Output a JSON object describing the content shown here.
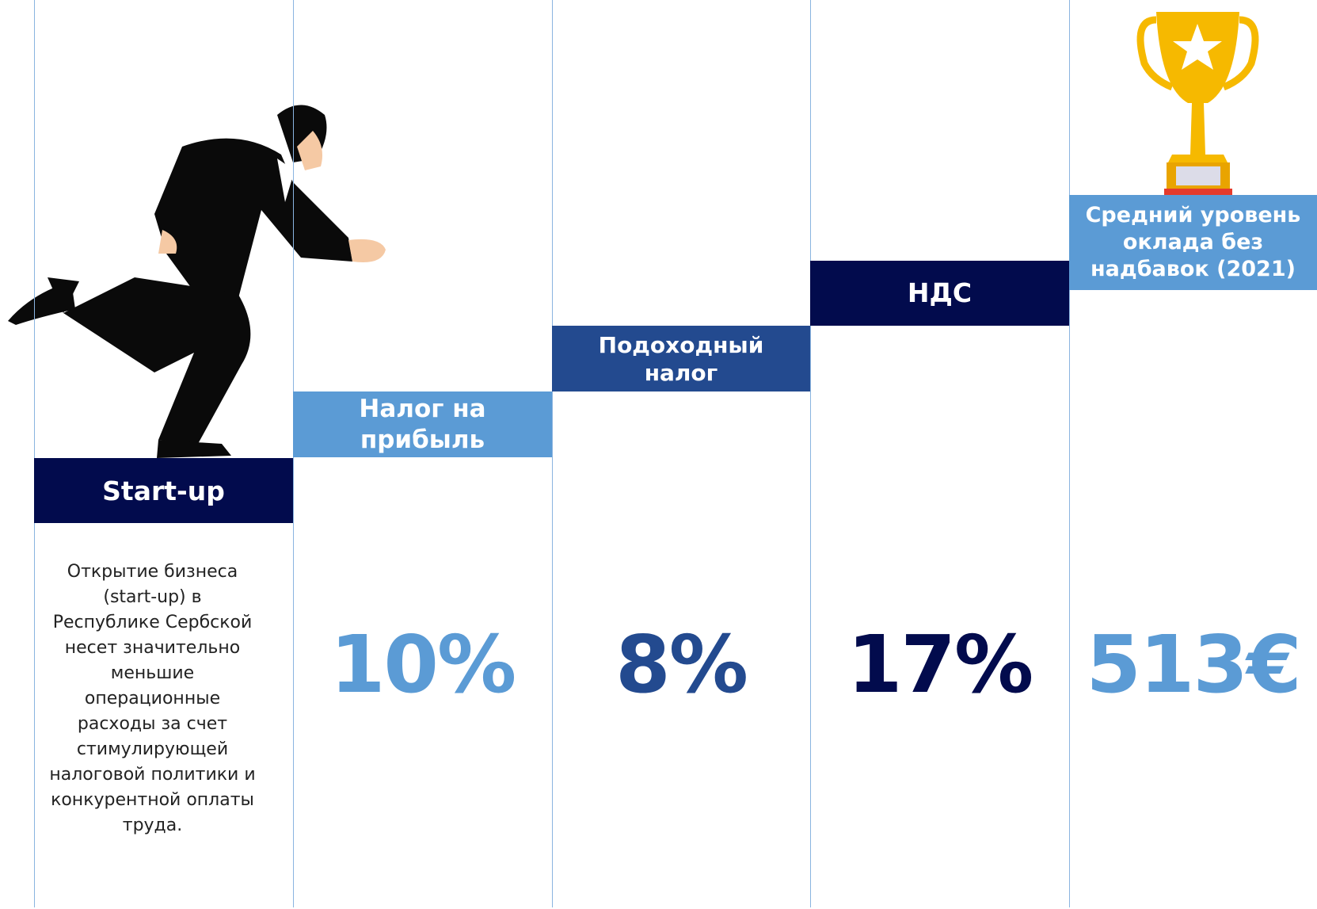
{
  "intro": {
    "title": "Start-up",
    "text": "Открытие бизнеса (start-up) в Республике Сербской несет значительно меньшие операционные расходы за счет стимулирующей налоговой политики и конкурентной оплаты труда."
  },
  "steps": [
    {
      "title": "Налог на прибыль",
      "value": "10%"
    },
    {
      "title": "Подоходный налог",
      "value": "8%"
    },
    {
      "title": "НДС",
      "value": "17%"
    },
    {
      "title": "Средний уровень оклада без надбавок (2021)",
      "value": "513€"
    }
  ]
}
